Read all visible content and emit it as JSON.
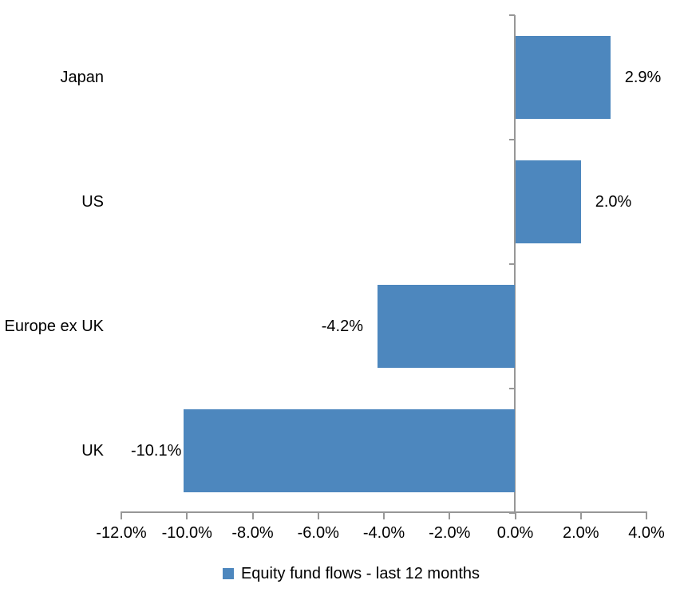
{
  "chart_data": {
    "type": "bar",
    "orientation": "horizontal",
    "title": "",
    "categories": [
      "Japan",
      "US",
      "Europe ex UK",
      "UK"
    ],
    "values": [
      2.9,
      2.0,
      -4.2,
      -10.1
    ],
    "data_labels": [
      "2.9%",
      "2.0%",
      "-4.2%",
      "-10.1%"
    ],
    "series_name": "Equity fund flows - last 12 months",
    "xlabel": "",
    "ylabel": "",
    "xlim": [
      -12,
      4
    ],
    "x_ticks": [
      -12,
      -10,
      -8,
      -6,
      -4,
      -2,
      0,
      2,
      4
    ],
    "x_tick_labels": [
      "-12.0%",
      "-10.0%",
      "-8.0%",
      "-6.0%",
      "-4.0%",
      "-2.0%",
      "0.0%",
      "2.0%",
      "4.0%"
    ],
    "grid": false,
    "legend_position": "bottom",
    "bar_color": "#4D87BE",
    "axis_color": "#979797",
    "text_color": "#000000"
  }
}
